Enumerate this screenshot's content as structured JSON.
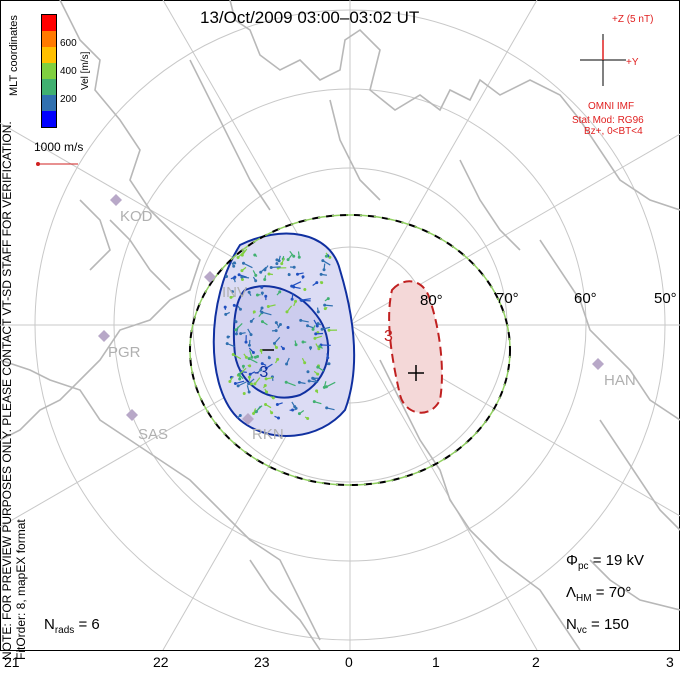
{
  "title": "13/Oct/2009 03:00–03:02 UT",
  "coord_label": "MLT coordinates",
  "note": "NOTE: FOR PREVIEW PURPOSES ONLY. PLEASE CONTACT VT-SD STAFF FOR VERIFICATION.",
  "fit_order": "FitOrder: 8, mapEX format",
  "colorbar": {
    "label": "Vel [m/s]",
    "ticks": [
      "600",
      "400",
      "200"
    ],
    "colors": [
      "#ff0000",
      "#ff7a00",
      "#ffc000",
      "#80d040",
      "#40b070",
      "#3070b0",
      "#0000ff"
    ]
  },
  "vector_scale": "1000 m/s",
  "imf": {
    "z_label": "+Z (5 nT)",
    "y_label": "+Y",
    "source": "OMNI IMF",
    "model": "Stat Mod: RG96",
    "condition": "Bz+, 0<BT<4"
  },
  "latitudes": [
    "80°",
    "70°",
    "60°",
    "50°"
  ],
  "stations": [
    {
      "name": "KOD",
      "x": 0,
      "y": 0
    },
    {
      "name": "PGR"
    },
    {
      "name": "SAS"
    },
    {
      "name": "RKN"
    },
    {
      "name": "HAN"
    },
    {
      "name": "INV"
    }
  ],
  "stats": {
    "phi_pc": "Φpc = 19 kV",
    "phi_sym": "Φ",
    "phi_sub": "pc",
    "phi_val": " = 19 kV",
    "lam_sym": "Λ",
    "lam_sub": "HM",
    "lam_val": " = 70°",
    "nvc_sym": "N",
    "nvc_sub": "vc",
    "nvc_val": " = 150",
    "nrad_sym": "N",
    "nrad_sub": "rads",
    "nrad_val": " = 6"
  },
  "x_axis": [
    "21",
    "22",
    "23",
    "0",
    "1",
    "2",
    "3"
  ],
  "contour_labels": [
    "-3",
    "3"
  ]
}
